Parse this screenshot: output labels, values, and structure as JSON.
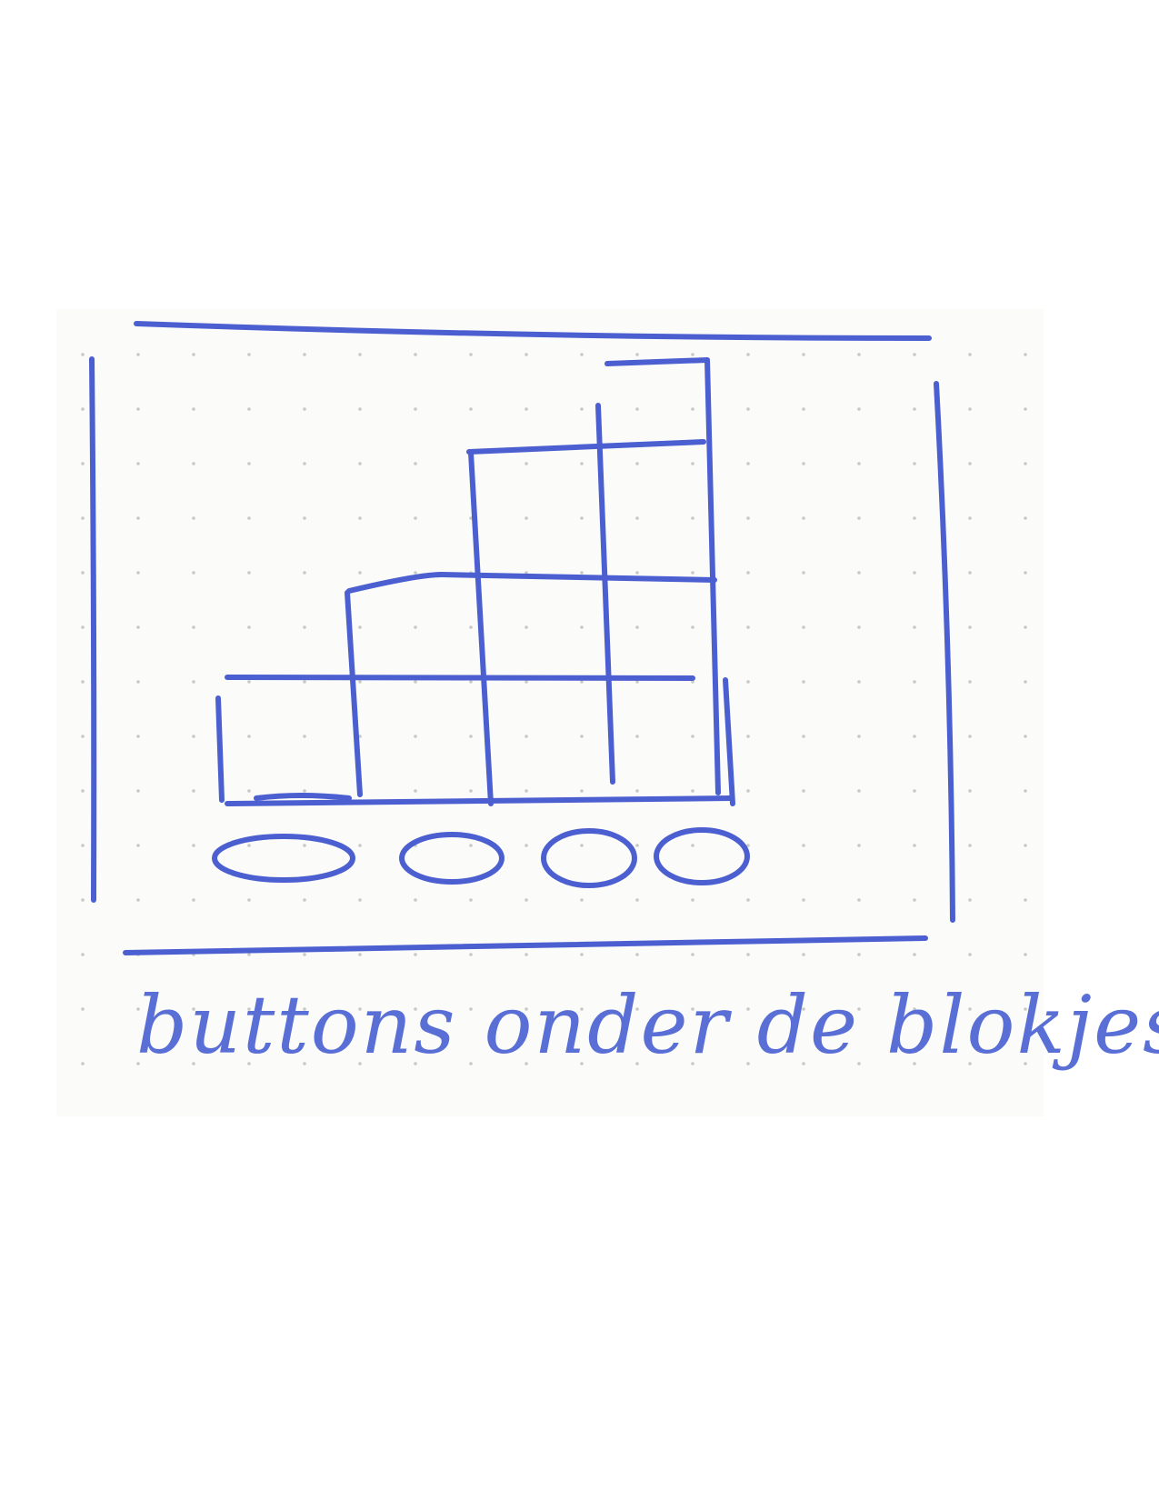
{
  "caption": "buttons onder de blokjes",
  "ink_color": "#4b5fd1",
  "grid": {
    "columns": 4,
    "rows": 3,
    "column_heights": [
      1,
      2,
      3,
      3
    ]
  },
  "buttons": [
    {
      "name": "button-1",
      "icon": "oval"
    },
    {
      "name": "button-2",
      "icon": "oval"
    },
    {
      "name": "button-3",
      "icon": "oval"
    },
    {
      "name": "button-4",
      "icon": "oval"
    }
  ]
}
